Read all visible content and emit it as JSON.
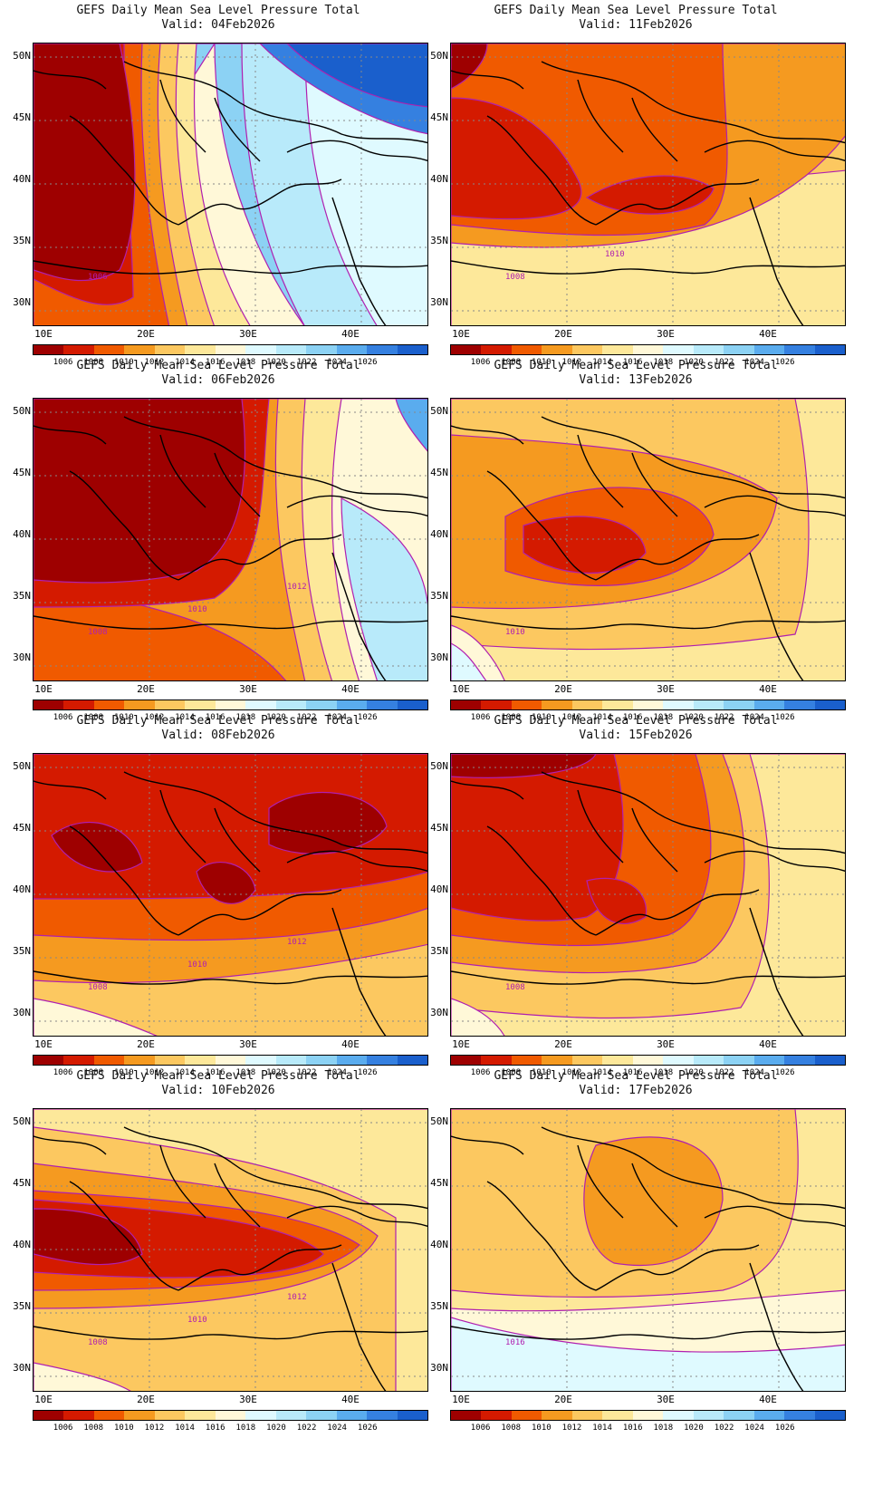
{
  "product_title": "GEFS Daily Mean Sea Level Pressure Total",
  "axes": {
    "lat_labels": [
      "50N",
      "45N",
      "40N",
      "35N",
      "30N"
    ],
    "lon_labels": [
      "10E",
      "20E",
      "30E",
      "40E"
    ]
  },
  "colorbar": {
    "levels": [
      "1006",
      "1008",
      "1010",
      "1012",
      "1014",
      "1016",
      "1018",
      "1020",
      "1022",
      "1024",
      "1026"
    ],
    "colors": [
      "#9e0000",
      "#d41a00",
      "#f05a00",
      "#f59a20",
      "#fcc860",
      "#fde89a",
      "#fff8d8",
      "#dffaff",
      "#b8eafa",
      "#8cd2f4",
      "#5aacee",
      "#3580e0",
      "#1a5fcc"
    ]
  },
  "contour_color": "#b01fb0",
  "panels": [
    {
      "valid": "Valid: 04Feb2026",
      "scheme": "04",
      "labels": [
        "1006"
      ]
    },
    {
      "valid": "Valid: 11Feb2026",
      "scheme": "11",
      "labels": [
        "1008",
        "1010"
      ]
    },
    {
      "valid": "Valid: 06Feb2026",
      "scheme": "06",
      "labels": [
        "1008",
        "1010",
        "1012"
      ]
    },
    {
      "valid": "Valid: 13Feb2026",
      "scheme": "13",
      "labels": [
        "1010"
      ]
    },
    {
      "valid": "Valid: 08Feb2026",
      "scheme": "08",
      "labels": [
        "1008",
        "1010",
        "1012"
      ]
    },
    {
      "valid": "Valid: 15Feb2026",
      "scheme": "15",
      "labels": [
        "1008"
      ]
    },
    {
      "valid": "Valid: 10Feb2026",
      "scheme": "10",
      "labels": [
        "1008",
        "1010",
        "1012"
      ]
    },
    {
      "valid": "Valid: 17Feb2026",
      "scheme": "17",
      "labels": [
        "1016"
      ]
    }
  ]
}
